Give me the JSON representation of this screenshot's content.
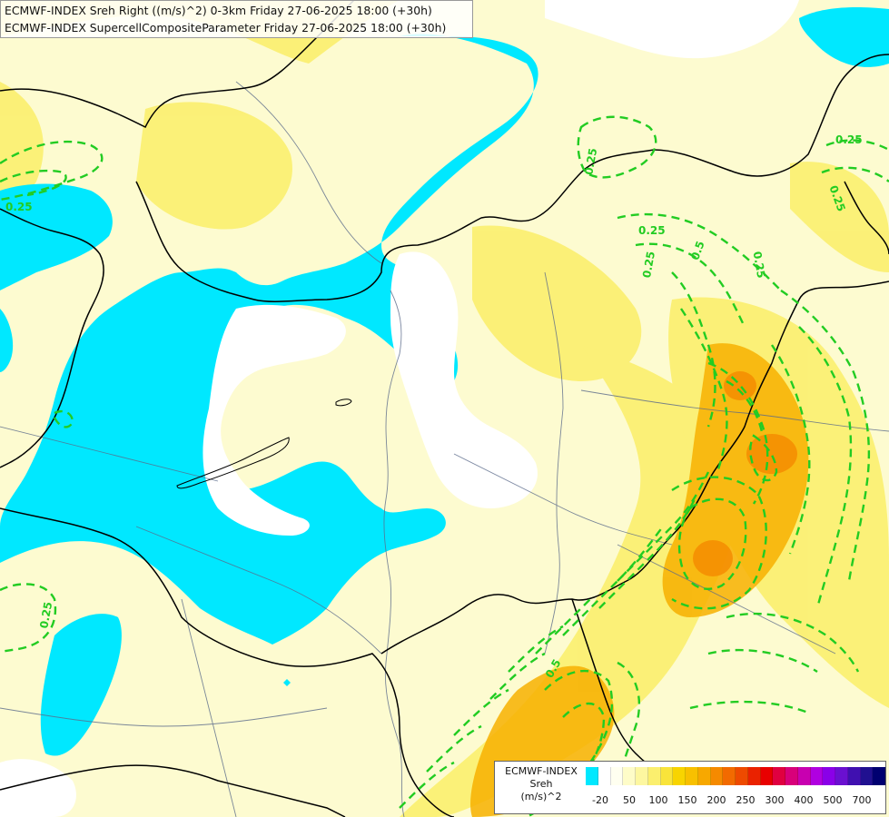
{
  "title": {
    "line1": "ECMWF-INDEX Sreh Right ((m/s)^2) 0-3km Friday 27-06-2025 18:00 (+30h)",
    "line2": "ECMWF-INDEX SupercellCompositeParameter Friday 27-06-2025 18:00 (+30h)"
  },
  "legend": {
    "line1": "ECMWF-INDEX",
    "line2": "Sreh",
    "line3": "(m/s)^2",
    "tick_labels": [
      "-20",
      "50",
      "100",
      "150",
      "200",
      "250",
      "300",
      "400",
      "500",
      "700"
    ],
    "colors": [
      "#00e8ff",
      "#ffffff",
      "#fffff0",
      "#fefcc8",
      "#fdf7a0",
      "#fbef6e",
      "#f9e43a",
      "#f8d400",
      "#f8c000",
      "#f7a800",
      "#f58a00",
      "#f26a00",
      "#ee4a00",
      "#ea2200",
      "#e80000",
      "#e00040",
      "#d8007a",
      "#c800b0",
      "#b000e0",
      "#8a00e8",
      "#6a10d0",
      "#4010b0",
      "#201090",
      "#000070"
    ]
  },
  "contour_labels": [
    "0.25",
    "0.25",
    "0.25",
    "0.25",
    "0.25",
    "0.25",
    "0.25",
    "0.25",
    "0.5",
    "0.5"
  ],
  "colors": {
    "cyan": "#00e8ff",
    "light_yellow": "#fefbc8",
    "yellow": "#fbef6e",
    "orange": "#f7b000",
    "contour": "#22cc22",
    "border": "#000000",
    "river": "#5a6a8a"
  }
}
